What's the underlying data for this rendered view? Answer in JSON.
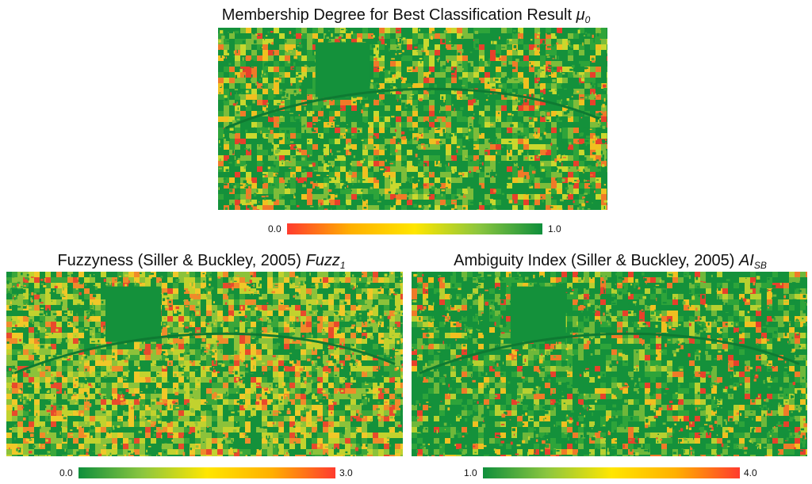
{
  "panels": {
    "top": {
      "title": "Membership Degree for Best Classification Result ",
      "symbol": "μ",
      "subscript": "0",
      "scale_min": "0.0",
      "scale_max": "1.0",
      "gradient": [
        "#ff3b2e",
        "#ffb000",
        "#ffe600",
        "#8cc63f",
        "#0f8f3c"
      ]
    },
    "left": {
      "title": "Fuzzyness (Siller & Buckley, 2005) ",
      "symbol": "Fuzz",
      "subscript": "1",
      "scale_min": "0.0",
      "scale_max": "3.0",
      "gradient": [
        "#0f8f3c",
        "#8cc63f",
        "#ffe600",
        "#ffb000",
        "#ff3b2e"
      ]
    },
    "right": {
      "title": "Ambiguity Index (Siller & Buckley, 2005) ",
      "symbol": "AI",
      "subscript": "SB",
      "scale_min": "1.0",
      "scale_max": "4.0",
      "gradient": [
        "#0f8f3c",
        "#8cc63f",
        "#ffe600",
        "#ffb000",
        "#ff3b2e"
      ]
    }
  }
}
